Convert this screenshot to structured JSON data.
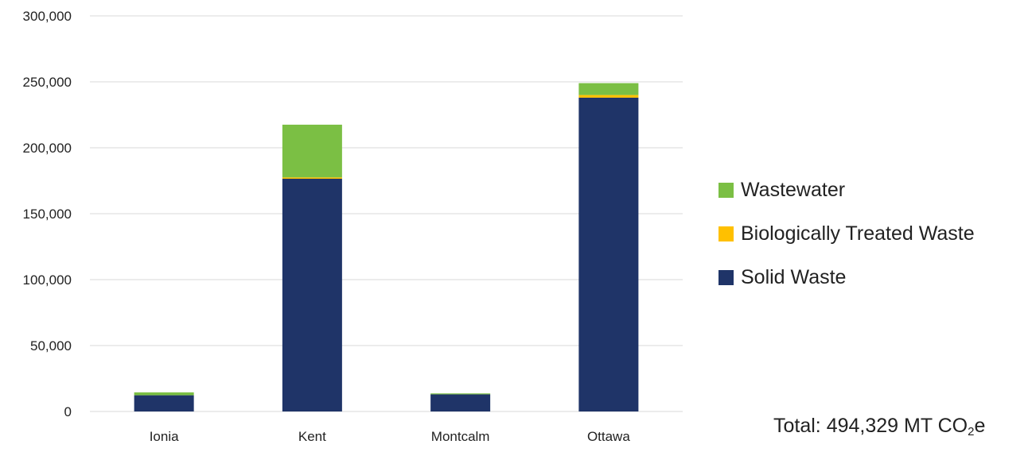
{
  "chart_data": {
    "type": "bar",
    "stacked": true,
    "categories": [
      "Ionia",
      "Kent",
      "Montcalm",
      "Ottawa"
    ],
    "series": [
      {
        "name": "Solid Waste",
        "color": "#1f3468",
        "values": [
          12300,
          176500,
          13000,
          238000
        ]
      },
      {
        "name": "Biologically Treated Waste",
        "color": "#ffc000",
        "values": [
          0,
          1000,
          0,
          2000
        ]
      },
      {
        "name": "Wastewater",
        "color": "#7bbf44",
        "values": [
          2200,
          40000,
          700,
          9000
        ]
      }
    ],
    "yticks": [
      "0",
      "50,000",
      "100,000",
      "150,000",
      "200,000",
      "250,000",
      "300,000"
    ],
    "ylim": [
      0,
      300000
    ],
    "grid": true,
    "legend_position": "right",
    "legend_order": [
      "Wastewater",
      "Biologically Treated Waste",
      "Solid Waste"
    ]
  },
  "total": {
    "prefix": "Total: 494,329 MT CO",
    "subscript": "2",
    "suffix": "e"
  }
}
